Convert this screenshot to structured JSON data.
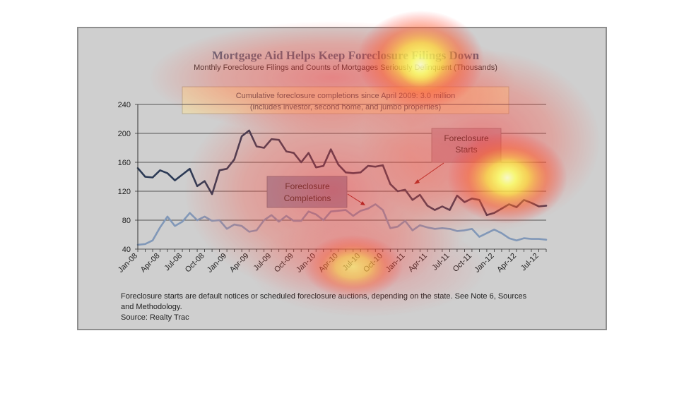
{
  "chart_data": {
    "type": "line",
    "title": "Mortgage Aid Helps Keep Foreclosure Filings Down",
    "subtitle": "Monthly Foreclosure Filings and Counts of Mortgages Seriously Delinquent (Thousands)",
    "note_box": {
      "line1": "Cumulative foreclosure completions since April 2009: 3.0 million",
      "line2": "(includes investor, second home, and jumbo properties)"
    },
    "ylim": [
      40,
      240
    ],
    "yticks": [
      "40",
      "80",
      "120",
      "160",
      "200",
      "240"
    ],
    "xtick_labels": [
      "Jan-08",
      "Apr-08",
      "Jul-08",
      "Oct-08",
      "Jan-09",
      "Apr-09",
      "Jul-09",
      "Oct-09",
      "Jan-10",
      "Apr-10",
      "Jul-10",
      "Oct-10",
      "Jan-11",
      "Apr-11",
      "Jul-11",
      "Oct-11",
      "Jan-12",
      "Apr-12",
      "Jul-12"
    ],
    "grid": true,
    "series": [
      {
        "name": "Foreclosure Starts",
        "label_lines": [
          "Foreclosure",
          "Starts"
        ],
        "color": "#2b3a55",
        "values": [
          152,
          140,
          139,
          149,
          145,
          135,
          143,
          151,
          127,
          134,
          116,
          149,
          151,
          164,
          196,
          204,
          182,
          180,
          192,
          191,
          175,
          173,
          160,
          173,
          153,
          155,
          178,
          157,
          146,
          145,
          146,
          155,
          154,
          156,
          130,
          120,
          122,
          108,
          115,
          100,
          94,
          99,
          94,
          114,
          105,
          110,
          108,
          87,
          90,
          96,
          102,
          98,
          108,
          104,
          99,
          100
        ]
      },
      {
        "name": "Foreclosure Completions",
        "label_lines": [
          "Foreclosure",
          "Completions"
        ],
        "color": "#8198b8",
        "values": [
          46,
          47,
          52,
          70,
          85,
          72,
          78,
          90,
          80,
          85,
          79,
          80,
          68,
          74,
          72,
          64,
          66,
          80,
          87,
          78,
          86,
          79,
          79,
          92,
          88,
          80,
          92,
          93,
          94,
          86,
          93,
          96,
          102,
          94,
          69,
          71,
          79,
          66,
          73,
          70,
          68,
          69,
          68,
          65,
          66,
          68,
          57,
          62,
          67,
          62,
          55,
          52,
          55,
          54,
          54,
          53
        ]
      }
    ],
    "footnote": {
      "line1": "Foreclosure starts are default notices or scheduled foreclosure auctions, depending on the state. See Note 6, Sources",
      "line2": "and Methodology.",
      "line3": "Source: Realty Trac"
    }
  }
}
